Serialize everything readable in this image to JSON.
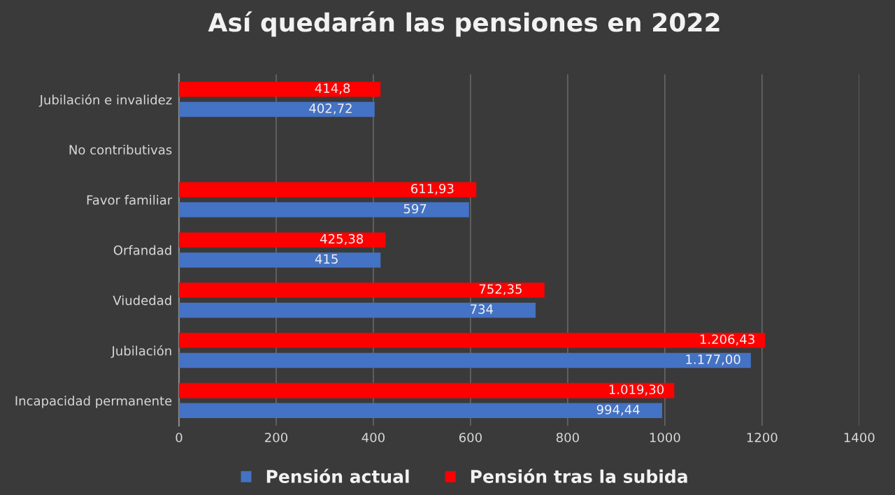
{
  "chart_data": {
    "type": "bar",
    "orientation": "horizontal",
    "title": "Así quedarán las pensiones en 2022",
    "categories": [
      "Jubilación e invalidez",
      "No contributivas",
      "Favor familiar",
      "Orfandad",
      "Viudedad",
      "Jubilación",
      "Incapacidad permanente"
    ],
    "series": [
      {
        "name": "Pensión actual",
        "color": "#4472c4",
        "values": [
          402.72,
          null,
          597,
          415,
          734,
          1177,
          994.44
        ],
        "value_labels": [
          "402,72",
          null,
          "597",
          "415",
          "734",
          "1.177,00",
          "994,44"
        ]
      },
      {
        "name": "Pensión tras la subida",
        "color": "#ff0000",
        "values": [
          414.8,
          null,
          611.93,
          425.38,
          752.35,
          1206.43,
          1019.3
        ],
        "value_labels": [
          "414,8",
          null,
          "611,93",
          "425,38",
          "752,35",
          "1.206,43",
          "1.019,30"
        ]
      }
    ],
    "xlim": [
      0,
      1400
    ],
    "xticks": [
      0,
      200,
      400,
      600,
      800,
      1000,
      1200,
      1400
    ],
    "grid": "x",
    "legend": "bottom"
  }
}
